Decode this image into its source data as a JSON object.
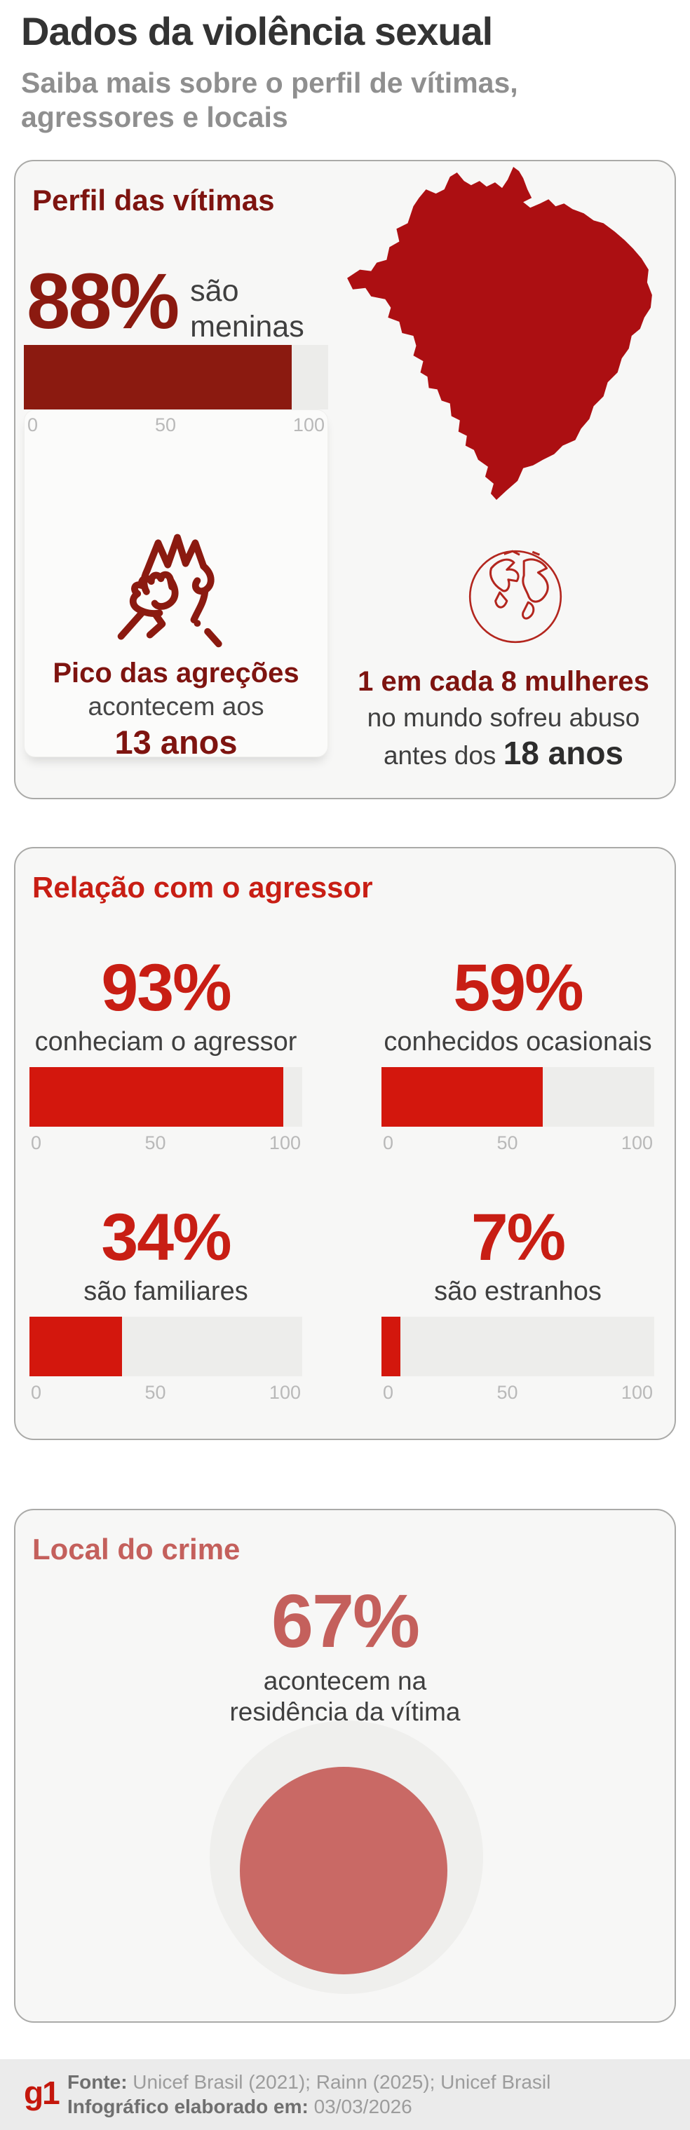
{
  "page": {
    "title": "Dados da violência sexual",
    "subtitle_line1": "Saiba mais sobre o perfil de vítimas,",
    "subtitle_line2": "agressores e locais"
  },
  "axis_ticks": [
    "0",
    "50",
    "100"
  ],
  "cards": {
    "victims": {
      "title": "Perfil das vítimas",
      "stat_value": "88%",
      "stat_label_line1": "são",
      "stat_label_line2": "meninas",
      "bar": {
        "value": 88,
        "max": 100
      },
      "peak": {
        "title": "Pico das agreções",
        "middle": "acontecem aos",
        "bold": "13 anos"
      },
      "world": {
        "line1": "1 em cada 8 mulheres",
        "line2": "no mundo sofreu abuso",
        "line3_prefix": "antes dos ",
        "line3_bold": "18 anos"
      }
    },
    "aggressor": {
      "title": "Relação com o agressor",
      "stats": [
        {
          "value": "93%",
          "pct": 93,
          "label": "conheciam o agressor"
        },
        {
          "value": "59%",
          "pct": 59,
          "label": "conhecidos ocasionais"
        },
        {
          "value": "34%",
          "pct": 34,
          "label": "são familiares"
        },
        {
          "value": "7%",
          "pct": 7,
          "label": "são estranhos"
        }
      ]
    },
    "location": {
      "title": "Local do crime",
      "value": "67%",
      "pct": 67,
      "label_line1": "acontecem na",
      "label_line2": "residência da vítima"
    }
  },
  "footer": {
    "logo": "g1",
    "source_label": "Fonte:",
    "source_value": " Unicef Brasil (2021); Rainn (2025); Unicef Brasil",
    "date_label": "Infográfico elaborado em:",
    "date_value": " 03/03/2026"
  },
  "colors": {
    "maroon_text": "#7e1410",
    "maroon_fill": "#8b1a10",
    "map_red": "#ac0f12",
    "bright_red_text": "#c81e14",
    "bright_red_bar": "#d3170d",
    "rose_text": "#c4605c",
    "rose_circle": "#c96965",
    "dark_gray_text": "#3f3f3f",
    "subtitle_gray": "#8f8f8f",
    "axis_gray": "#b9b9b9",
    "card_bg": "#f7f7f6",
    "card_border": "#aaaaa8",
    "footer_bg": "#ebebeb",
    "g1_red": "#c4170c"
  },
  "chart_data": [
    {
      "type": "bar",
      "orientation": "horizontal",
      "title": "Perfil das vítimas",
      "categories": [
        "são meninas"
      ],
      "values": [
        88
      ],
      "xlim": [
        0,
        100
      ],
      "tick_labels": [
        0,
        50,
        100
      ],
      "bar_color": "#8b1a10",
      "annotations": [
        "Pico das agreções acontecem aos 13 anos",
        "1 em cada 8 mulheres no mundo sofreu abuso antes dos 18 anos"
      ]
    },
    {
      "type": "bar",
      "orientation": "horizontal",
      "title": "Relação com o agressor",
      "categories": [
        "conheciam o agressor",
        "conhecidos ocasionais",
        "são familiares",
        "são estranhos"
      ],
      "values": [
        93,
        59,
        34,
        7
      ],
      "xlim": [
        0,
        100
      ],
      "tick_labels": [
        0,
        50,
        100
      ],
      "bar_color": "#d3170d"
    },
    {
      "type": "area",
      "variant": "nested-circles",
      "title": "Local do crime",
      "categories": [
        "acontecem na residência da vítima"
      ],
      "values": [
        67
      ],
      "max": 100,
      "inner_color": "#c96965",
      "outer_color": "#efefed"
    }
  ]
}
